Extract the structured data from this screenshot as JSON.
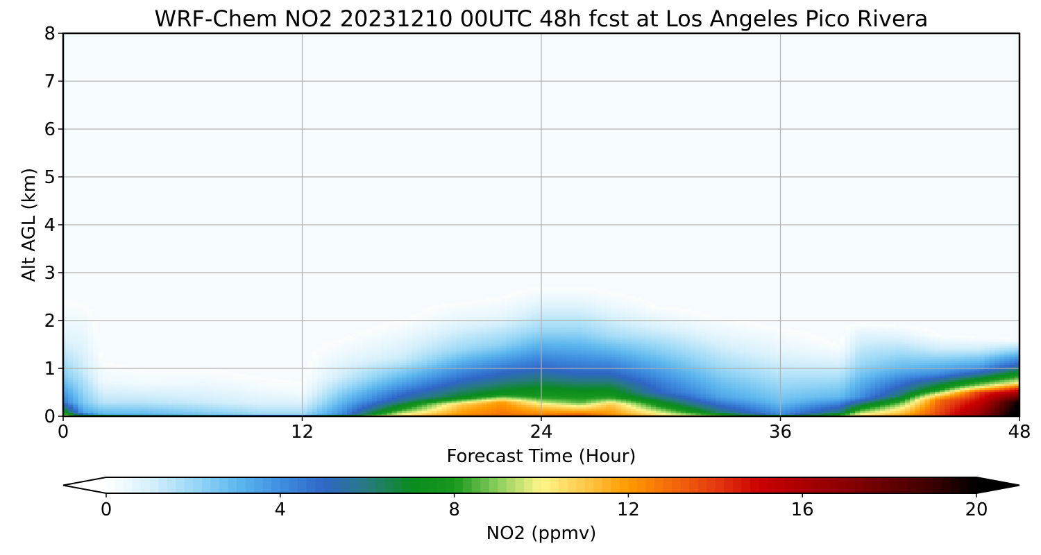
{
  "chart_data": {
    "type": "heatmap",
    "title": "WRF-Chem NO2  20231210 00UTC 48h fcst at Los Angeles Pico Rivera",
    "xlabel": "Forecast Time (Hour)",
    "ylabel": "Alt AGL (km)",
    "xlim": [
      0,
      48
    ],
    "ylim": [
      0,
      8
    ],
    "x_ticks": [
      0,
      12,
      24,
      36,
      48
    ],
    "y_ticks": [
      0,
      1,
      2,
      3,
      4,
      5,
      6,
      7,
      8
    ],
    "grid": true,
    "colorbar": {
      "label": "NO2  (ppmv)",
      "orientation": "horizontal",
      "placement": "bottom",
      "range": [
        0,
        20
      ],
      "ticks": [
        0,
        4,
        8,
        12,
        16,
        20
      ],
      "extend": "both",
      "stops": [
        {
          "value": 0,
          "color": "#ffffff"
        },
        {
          "value": 1,
          "color": "#d7f0fb"
        },
        {
          "value": 2,
          "color": "#9bd8f6"
        },
        {
          "value": 3,
          "color": "#5fb8ee"
        },
        {
          "value": 4,
          "color": "#3f8fe0"
        },
        {
          "value": 5,
          "color": "#2f66c6"
        },
        {
          "value": 6,
          "color": "#287a80"
        },
        {
          "value": 7,
          "color": "#0a8b1e"
        },
        {
          "value": 8,
          "color": "#18981e"
        },
        {
          "value": 9,
          "color": "#8ccf5e"
        },
        {
          "value": 10,
          "color": "#fff58a"
        },
        {
          "value": 11,
          "color": "#ffc94a"
        },
        {
          "value": 12,
          "color": "#ff9a00"
        },
        {
          "value": 13,
          "color": "#f36a0a"
        },
        {
          "value": 14,
          "color": "#e43a10"
        },
        {
          "value": 15,
          "color": "#cc0000"
        },
        {
          "value": 17,
          "color": "#8a0000"
        },
        {
          "value": 19,
          "color": "#3a0000"
        },
        {
          "value": 20,
          "color": "#000000"
        }
      ]
    },
    "columns": [
      {
        "x": 0,
        "profile": [
          [
            0,
            10
          ],
          [
            0.1,
            7.5
          ],
          [
            0.3,
            4.5
          ],
          [
            0.8,
            2.5
          ],
          [
            1.6,
            0.8
          ],
          [
            2.3,
            0.2
          ]
        ]
      },
      {
        "x": 1,
        "profile": [
          [
            0,
            8
          ],
          [
            0.08,
            3.5
          ],
          [
            0.3,
            2.5
          ],
          [
            1.0,
            1.2
          ],
          [
            1.8,
            0.5
          ],
          [
            2.3,
            0.15
          ]
        ]
      },
      {
        "x": 2,
        "profile": [
          [
            0,
            9
          ],
          [
            0.06,
            3
          ],
          [
            0.3,
            1.5
          ],
          [
            0.75,
            0.4
          ],
          [
            1.2,
            0.08
          ]
        ]
      },
      {
        "x": 4,
        "profile": [
          [
            0,
            8
          ],
          [
            0.05,
            3
          ],
          [
            0.3,
            1.5
          ],
          [
            0.7,
            0.35
          ],
          [
            1.1,
            0.05
          ]
        ]
      },
      {
        "x": 7,
        "profile": [
          [
            0,
            8
          ],
          [
            0.05,
            2.5
          ],
          [
            0.3,
            1.2
          ],
          [
            0.75,
            0.35
          ],
          [
            1.1,
            0.05
          ]
        ]
      },
      {
        "x": 10,
        "profile": [
          [
            0,
            8
          ],
          [
            0.04,
            2
          ],
          [
            0.25,
            1
          ],
          [
            0.6,
            0.3
          ],
          [
            0.9,
            0.05
          ]
        ]
      },
      {
        "x": 12,
        "profile": [
          [
            0,
            8
          ],
          [
            0.04,
            2
          ],
          [
            0.25,
            1
          ],
          [
            0.5,
            0.3
          ],
          [
            0.8,
            0.05
          ]
        ]
      },
      {
        "x": 14,
        "profile": [
          [
            0,
            8.5
          ],
          [
            0.06,
            4
          ],
          [
            0.3,
            3
          ],
          [
            0.8,
            1.2
          ],
          [
            1.4,
            0.3
          ],
          [
            1.7,
            0.05
          ]
        ]
      },
      {
        "x": 17,
        "profile": [
          [
            0,
            11
          ],
          [
            0.15,
            8
          ],
          [
            0.35,
            5.5
          ],
          [
            0.7,
            3.5
          ],
          [
            1.2,
            1.2
          ],
          [
            1.8,
            0.3
          ],
          [
            2.1,
            0.05
          ]
        ]
      },
      {
        "x": 20,
        "profile": [
          [
            0,
            12.5
          ],
          [
            0.25,
            11
          ],
          [
            0.4,
            7
          ],
          [
            0.75,
            5
          ],
          [
            1.4,
            2
          ],
          [
            2.0,
            0.6
          ],
          [
            2.4,
            0.1
          ]
        ]
      },
      {
        "x": 22,
        "profile": [
          [
            0,
            13
          ],
          [
            0.3,
            12
          ],
          [
            0.45,
            7.5
          ],
          [
            0.8,
            5.5
          ],
          [
            1.5,
            2.2
          ],
          [
            2.1,
            0.6
          ],
          [
            2.5,
            0.1
          ]
        ]
      },
      {
        "x": 24,
        "profile": [
          [
            0,
            13
          ],
          [
            0.2,
            11
          ],
          [
            0.4,
            8
          ],
          [
            1.0,
            5
          ],
          [
            1.8,
            2
          ],
          [
            2.4,
            0.6
          ],
          [
            2.7,
            0.1
          ]
        ]
      },
      {
        "x": 26,
        "profile": [
          [
            0,
            14
          ],
          [
            0.15,
            11
          ],
          [
            0.3,
            8.5
          ],
          [
            0.9,
            5
          ],
          [
            1.8,
            2
          ],
          [
            2.4,
            0.6
          ],
          [
            2.7,
            0.1
          ]
        ]
      },
      {
        "x": 27.5,
        "profile": [
          [
            0,
            12.5
          ],
          [
            0.25,
            11
          ],
          [
            0.4,
            8
          ],
          [
            0.9,
            5
          ],
          [
            1.7,
            1.8
          ],
          [
            2.3,
            0.5
          ],
          [
            2.6,
            0.1
          ]
        ]
      },
      {
        "x": 30,
        "profile": [
          [
            0,
            11
          ],
          [
            0.2,
            8
          ],
          [
            0.5,
            5
          ],
          [
            1.3,
            2.5
          ],
          [
            1.9,
            0.8
          ],
          [
            2.3,
            0.1
          ]
        ]
      },
      {
        "x": 33,
        "profile": [
          [
            0,
            9
          ],
          [
            0.1,
            6
          ],
          [
            0.4,
            3.5
          ],
          [
            1.1,
            1.8
          ],
          [
            1.7,
            0.6
          ],
          [
            2.1,
            0.05
          ]
        ]
      },
      {
        "x": 36,
        "profile": [
          [
            0,
            8.5
          ],
          [
            0.06,
            4
          ],
          [
            0.3,
            2.8
          ],
          [
            0.9,
            1.5
          ],
          [
            1.4,
            0.6
          ],
          [
            1.9,
            0.05
          ]
        ]
      },
      {
        "x": 39,
        "profile": [
          [
            0,
            9
          ],
          [
            0.1,
            6
          ],
          [
            0.4,
            3
          ],
          [
            0.9,
            1.5
          ],
          [
            1.3,
            0.5
          ],
          [
            1.5,
            0.1
          ]
        ]
      },
      {
        "x": 40,
        "profile": [
          [
            0,
            11
          ],
          [
            0.15,
            8
          ],
          [
            0.4,
            4
          ],
          [
            1.1,
            2
          ],
          [
            1.7,
            0.8
          ],
          [
            1.95,
            0.1
          ]
        ]
      },
      {
        "x": 42,
        "profile": [
          [
            0,
            12
          ],
          [
            0.25,
            9
          ],
          [
            0.45,
            6
          ],
          [
            1.0,
            3
          ],
          [
            1.6,
            1
          ],
          [
            1.9,
            0.1
          ]
        ]
      },
      {
        "x": 44,
        "profile": [
          [
            0,
            14
          ],
          [
            0.35,
            13
          ],
          [
            0.55,
            8
          ],
          [
            0.9,
            4
          ],
          [
            1.4,
            1.2
          ],
          [
            1.7,
            0.1
          ]
        ]
      },
      {
        "x": 46,
        "profile": [
          [
            0,
            17
          ],
          [
            0.5,
            14
          ],
          [
            0.65,
            9
          ],
          [
            1.0,
            4
          ],
          [
            1.4,
            1.2
          ],
          [
            1.65,
            0.1
          ]
        ]
      },
      {
        "x": 48,
        "profile": [
          [
            0,
            21
          ],
          [
            0.3,
            20
          ],
          [
            0.6,
            14
          ],
          [
            0.7,
            10
          ],
          [
            1.0,
            6
          ],
          [
            1.4,
            2
          ],
          [
            1.6,
            0.1
          ]
        ]
      }
    ]
  }
}
